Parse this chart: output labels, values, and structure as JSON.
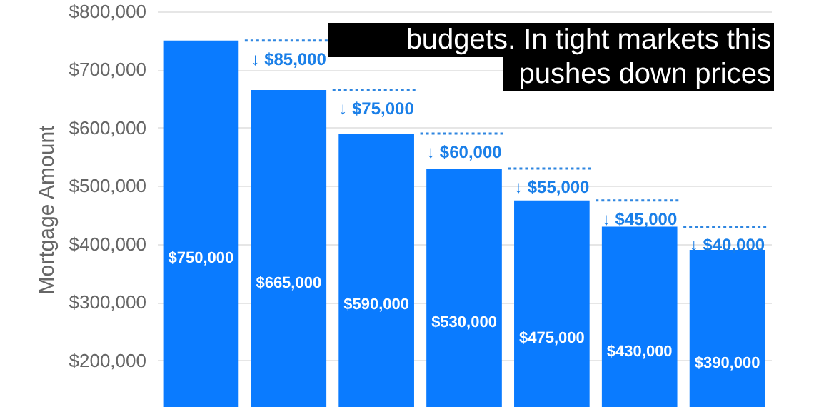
{
  "chart_data": {
    "type": "bar",
    "ylabel": "Mortgage Amount",
    "categories": [
      null,
      null,
      null,
      null,
      null,
      null,
      null
    ],
    "values": [
      750000,
      665000,
      590000,
      530000,
      475000,
      430000,
      390000
    ],
    "color": "#0a7bff",
    "value_labels": [
      "$750,000",
      "$665,000",
      "$590,000",
      "$530,000",
      "$475,000",
      "$430,000",
      "$390,000"
    ],
    "ylim": [
      120000,
      800000
    ],
    "yticks": [
      {
        "value": 200000,
        "label": "$200,000"
      },
      {
        "value": 300000,
        "label": "$300,000"
      },
      {
        "value": 400000,
        "label": "$400,000"
      },
      {
        "value": 500000,
        "label": "$500,000"
      },
      {
        "value": 600000,
        "label": "$600,000"
      },
      {
        "value": 700000,
        "label": "$700,000"
      },
      {
        "value": 800000,
        "label": "$800,000"
      }
    ],
    "grid": "y",
    "tick_labels": "y",
    "annotations": [
      "budgets. In tight markets this\npushes down prices",
      "↓ $85,000",
      "↓ $75,000",
      "↓ $60,000",
      "↓ $55,000",
      "↓ $45,000",
      "↓ $40,000"
    ]
  }
}
